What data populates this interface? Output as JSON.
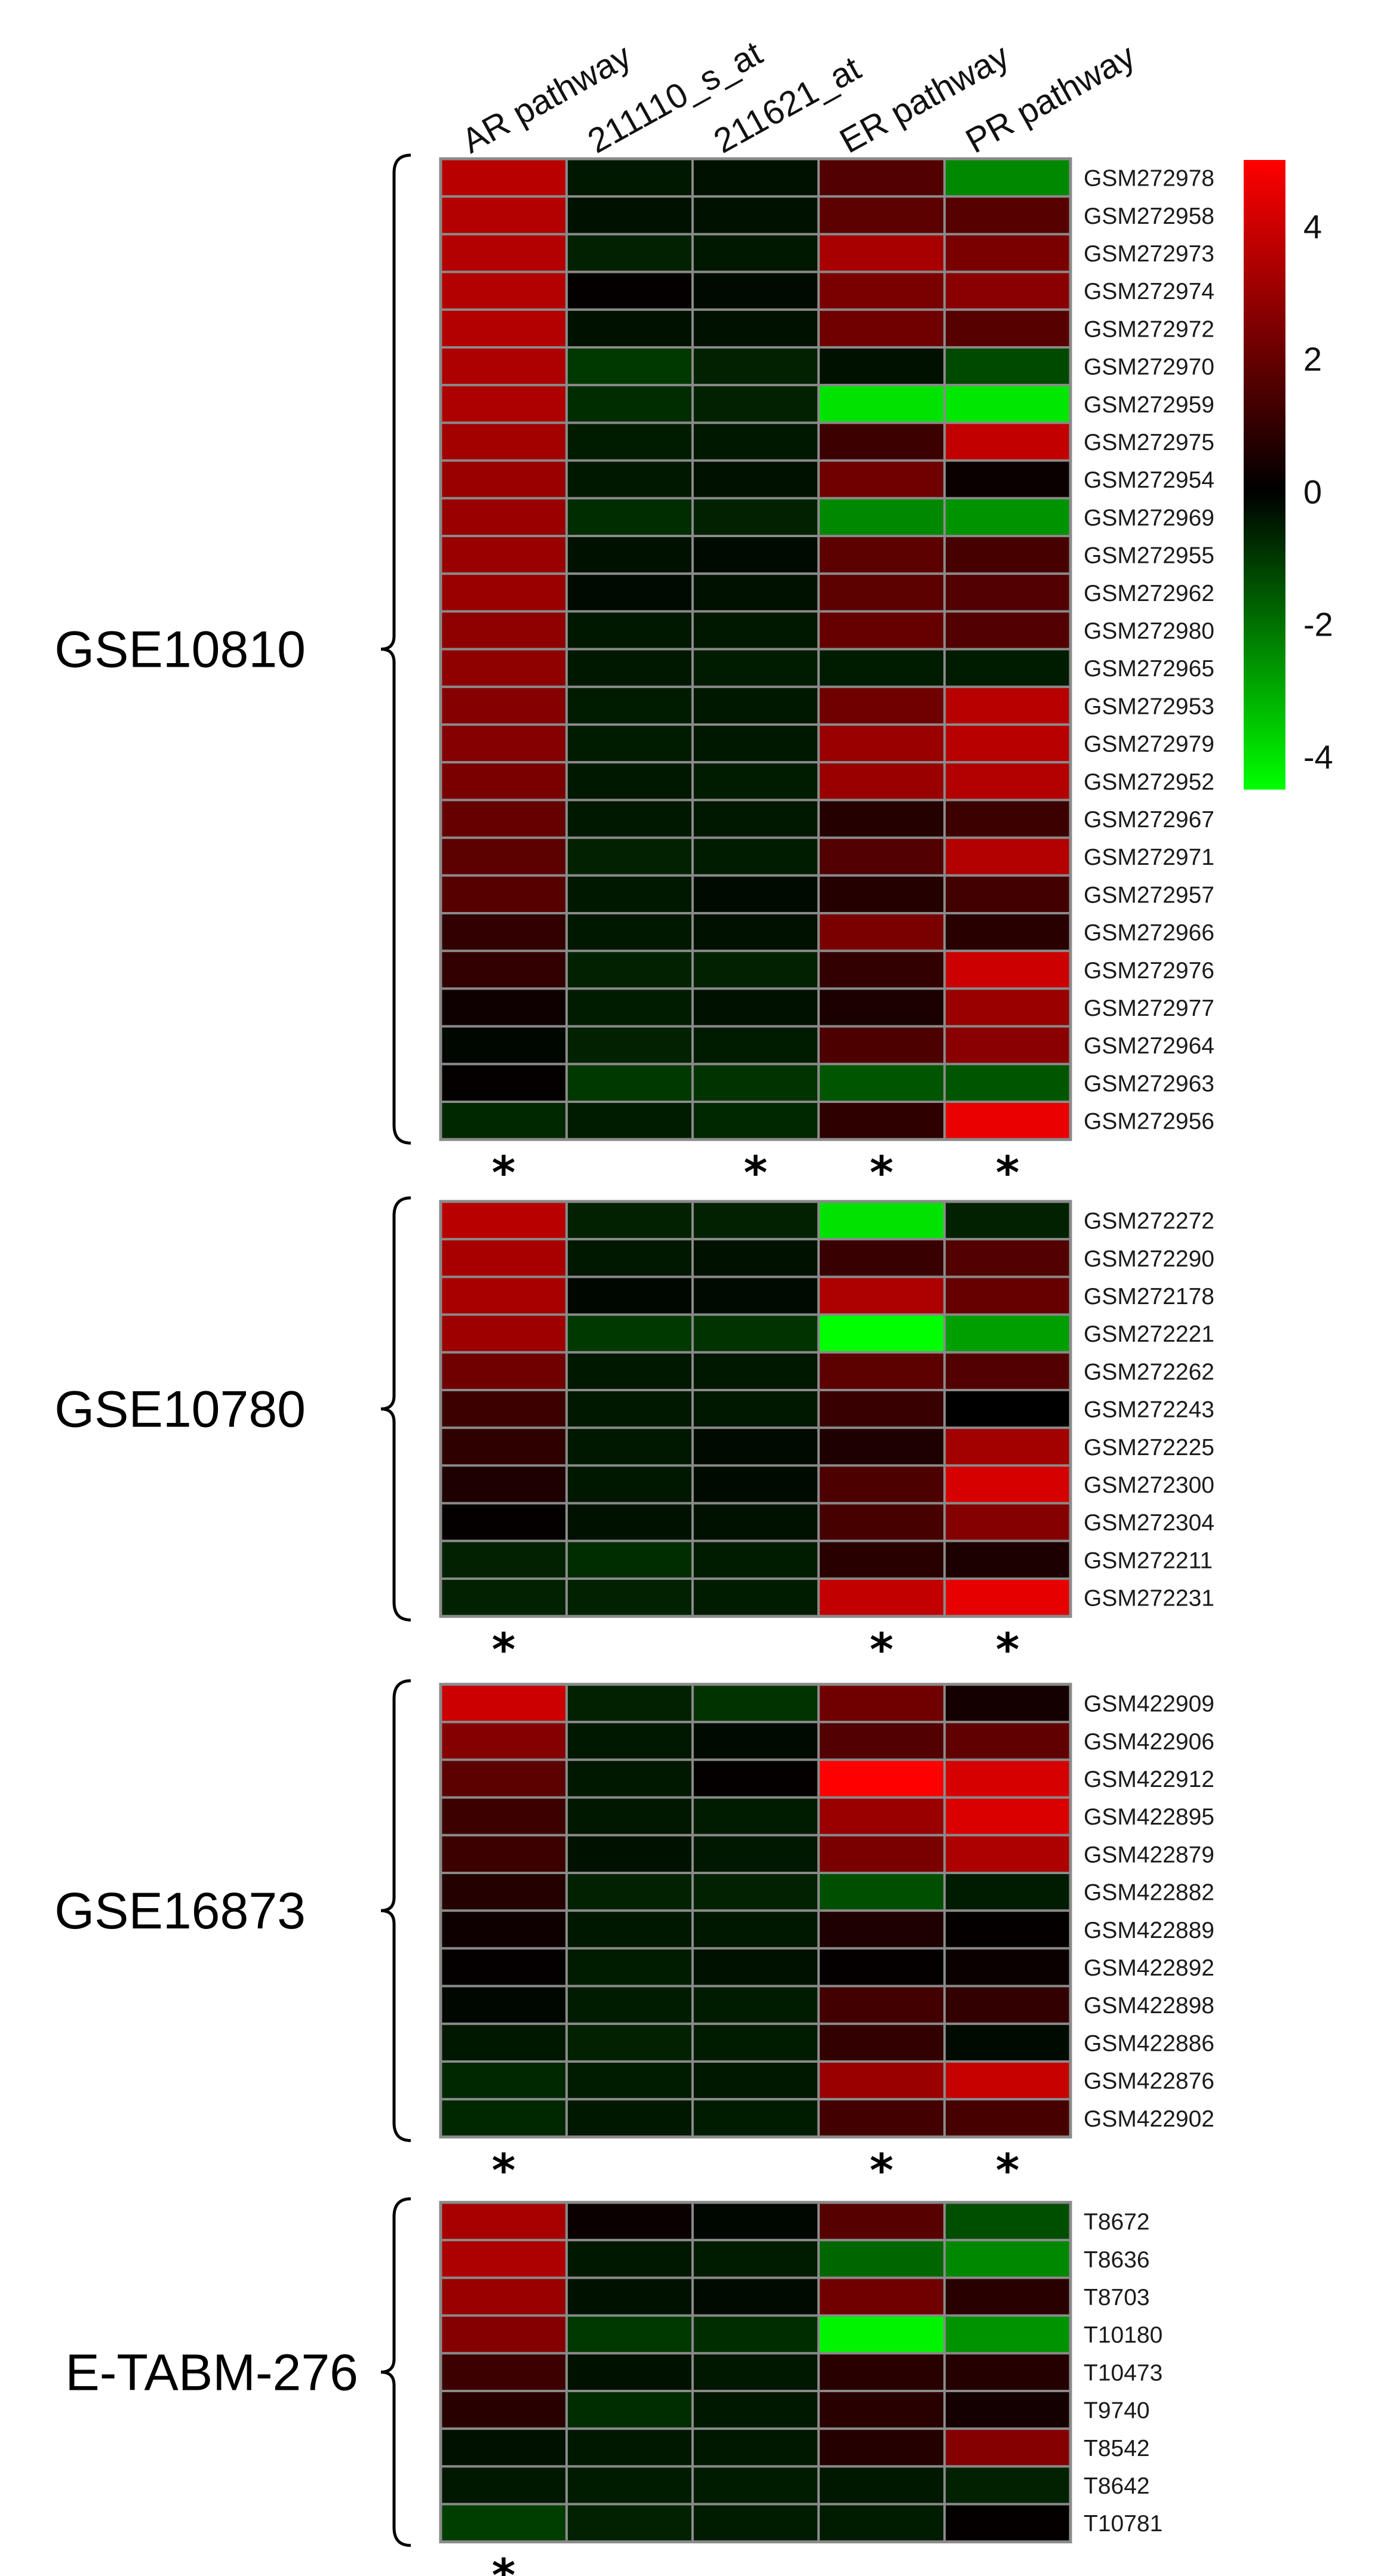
{
  "chart_data": {
    "type": "heatmap",
    "columns": [
      "AR pathway",
      "211110_s_at",
      "211621_at",
      "ER pathway",
      "PR pathway"
    ],
    "color_scale": {
      "min": -4.5,
      "max": 5,
      "low_color": "#00ff00",
      "mid_color": "#000000",
      "high_color": "#ff0000",
      "ticks": [
        "4",
        "2",
        "0",
        "-2",
        "-4"
      ],
      "tick_values": [
        4,
        2,
        0,
        -2,
        -4
      ]
    },
    "grid_color": "#8a8a8a",
    "datasets": [
      {
        "name": "GSE10810",
        "samples": [
          "GSM272978",
          "GSM272958",
          "GSM272973",
          "GSM272974",
          "GSM272972",
          "GSM272970",
          "GSM272959",
          "GSM272975",
          "GSM272954",
          "GSM272969",
          "GSM272955",
          "GSM272962",
          "GSM272980",
          "GSM272965",
          "GSM272953",
          "GSM272979",
          "GSM272952",
          "GSM272967",
          "GSM272971",
          "GSM272957",
          "GSM272966",
          "GSM272976",
          "GSM272977",
          "GSM272964",
          "GSM272963",
          "GSM272956"
        ],
        "values": [
          [
            3.6,
            -0.4,
            -0.3,
            1.6,
            -2.4
          ],
          [
            3.5,
            -0.3,
            -0.3,
            1.8,
            1.7
          ],
          [
            3.5,
            -0.6,
            -0.4,
            3.3,
            2.4
          ],
          [
            3.5,
            0.1,
            -0.2,
            2.4,
            2.7
          ],
          [
            3.5,
            -0.3,
            -0.3,
            2.2,
            1.7
          ],
          [
            3.4,
            -1.0,
            -0.6,
            -0.3,
            -1.3
          ],
          [
            3.4,
            -0.8,
            -0.6,
            -4.0,
            -4.1
          ],
          [
            3.2,
            -0.5,
            -0.4,
            1.2,
            3.8
          ],
          [
            3.0,
            -0.4,
            -0.3,
            2.2,
            0.2
          ],
          [
            3.0,
            -0.8,
            -0.6,
            -2.4,
            -2.6
          ],
          [
            3.0,
            -0.3,
            -0.2,
            1.8,
            1.4
          ],
          [
            3.0,
            -0.2,
            -0.3,
            1.8,
            1.6
          ],
          [
            2.8,
            -0.4,
            -0.4,
            2.0,
            1.6
          ],
          [
            2.8,
            -0.4,
            -0.5,
            -0.5,
            -0.5
          ],
          [
            2.6,
            -0.5,
            -0.4,
            2.2,
            3.6
          ],
          [
            2.6,
            -0.5,
            -0.4,
            3.0,
            3.6
          ],
          [
            2.4,
            -0.4,
            -0.5,
            3.0,
            3.5
          ],
          [
            2.0,
            -0.4,
            -0.4,
            0.7,
            1.2
          ],
          [
            1.8,
            -0.6,
            -0.5,
            1.6,
            3.5
          ],
          [
            1.7,
            -0.4,
            -0.2,
            0.7,
            1.3
          ],
          [
            1.0,
            -0.4,
            -0.3,
            2.4,
            0.8
          ],
          [
            1.0,
            -0.6,
            -0.6,
            1.0,
            4.0
          ],
          [
            0.3,
            -0.5,
            -0.3,
            0.5,
            3.0
          ],
          [
            -0.1,
            -0.6,
            -0.5,
            1.5,
            2.7
          ],
          [
            0.1,
            -1.0,
            -0.9,
            -1.5,
            -1.5
          ],
          [
            -0.7,
            -0.5,
            -0.7,
            0.9,
            4.6
          ]
        ],
        "significant": [
          "*",
          "",
          "*",
          "*",
          "*"
        ]
      },
      {
        "name": "GSE10780",
        "samples": [
          "GSM272272",
          "GSM272290",
          "GSM272178",
          "GSM272221",
          "GSM272262",
          "GSM272243",
          "GSM272225",
          "GSM272300",
          "GSM272304",
          "GSM272211",
          "GSM272231"
        ],
        "values": [
          [
            3.6,
            -0.6,
            -0.6,
            -4.0,
            -0.6
          ],
          [
            3.3,
            -0.4,
            -0.3,
            1.1,
            1.6
          ],
          [
            3.3,
            -0.1,
            -0.2,
            3.4,
            2.0
          ],
          [
            3.1,
            -1.0,
            -0.9,
            -4.5,
            -2.8
          ],
          [
            2.2,
            -0.4,
            -0.4,
            1.8,
            1.6
          ],
          [
            1.2,
            -0.4,
            -0.4,
            1.1,
            0.0
          ],
          [
            0.9,
            -0.4,
            -0.2,
            0.6,
            3.2
          ],
          [
            0.6,
            -0.4,
            -0.2,
            1.5,
            4.2
          ],
          [
            0.1,
            -0.3,
            -0.3,
            1.4,
            2.6
          ],
          [
            -0.6,
            -0.8,
            -0.5,
            0.8,
            0.5
          ],
          [
            -0.6,
            -0.6,
            -0.5,
            3.8,
            4.5
          ]
        ],
        "significant": [
          "*",
          "",
          "",
          "*",
          "*"
        ]
      },
      {
        "name": "GSE16873",
        "samples": [
          "GSM422909",
          "GSM422906",
          "GSM422912",
          "GSM422895",
          "GSM422879",
          "GSM422882",
          "GSM422889",
          "GSM422892",
          "GSM422898",
          "GSM422886",
          "GSM422876",
          "GSM422902"
        ],
        "values": [
          [
            4.0,
            -0.6,
            -0.9,
            2.2,
            0.4
          ],
          [
            2.6,
            -0.4,
            -0.2,
            1.6,
            1.9
          ],
          [
            1.8,
            -0.4,
            0.1,
            5.0,
            4.2
          ],
          [
            1.2,
            -0.4,
            -0.5,
            3.0,
            4.3
          ],
          [
            1.2,
            -0.3,
            -0.4,
            2.4,
            3.4
          ],
          [
            0.7,
            -0.6,
            -0.6,
            -1.4,
            -0.5
          ],
          [
            0.3,
            -0.4,
            -0.4,
            0.6,
            0.1
          ],
          [
            0.1,
            -0.5,
            -0.3,
            0.1,
            0.2
          ],
          [
            -0.1,
            -0.5,
            -0.5,
            1.3,
            1.0
          ],
          [
            -0.4,
            -0.6,
            -0.5,
            1.0,
            -0.2
          ],
          [
            -0.7,
            -0.5,
            -0.4,
            3.0,
            3.9
          ],
          [
            -0.7,
            -0.4,
            -0.5,
            1.3,
            1.4
          ]
        ],
        "significant": [
          "*",
          "",
          "",
          "*",
          "*"
        ]
      },
      {
        "name": "E-TABM-276",
        "samples": [
          "T8672",
          "T8636",
          "T8703",
          "T10180",
          "T10473",
          "T9740",
          "T8542",
          "T8642",
          "T10781"
        ],
        "values": [
          [
            3.3,
            0.2,
            -0.1,
            1.7,
            -1.4
          ],
          [
            3.4,
            -0.4,
            -0.5,
            -1.8,
            -2.4
          ],
          [
            3.0,
            -0.3,
            -0.2,
            2.2,
            0.8
          ],
          [
            2.6,
            -1.0,
            -0.8,
            -4.3,
            -2.6
          ],
          [
            1.2,
            -0.3,
            -0.4,
            0.8,
            0.7
          ],
          [
            0.8,
            -0.8,
            -0.4,
            0.8,
            0.4
          ],
          [
            -0.3,
            -0.4,
            -0.4,
            0.7,
            2.6
          ],
          [
            -0.4,
            -0.5,
            -0.5,
            -0.4,
            -0.6
          ],
          [
            -1.1,
            -0.6,
            -0.5,
            -0.5,
            0.1
          ]
        ],
        "significant": [
          "*",
          "",
          "",
          "",
          ""
        ]
      }
    ]
  }
}
